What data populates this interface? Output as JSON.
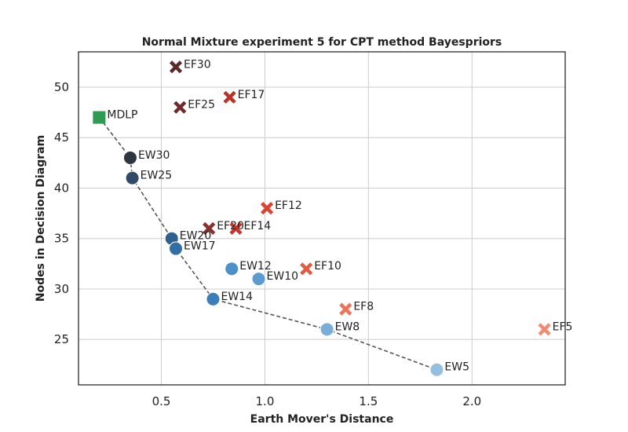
{
  "chart_data": {
    "type": "scatter",
    "title": "Normal Mixture experiment 5 for CPT method Bayespriors",
    "xlabel": "Earth Mover's Distance",
    "ylabel": "Nodes in Decision Diagram",
    "xlim": [
      0.1,
      2.45
    ],
    "ylim": [
      20.5,
      53.5
    ],
    "xticks": [
      0.5,
      1.0,
      1.5,
      2.0
    ],
    "xtick_labels": [
      "0.5",
      "1.0",
      "1.5",
      "2.0"
    ],
    "yticks": [
      25,
      30,
      35,
      40,
      45,
      50
    ],
    "ytick_labels": [
      "25",
      "30",
      "35",
      "40",
      "45",
      "50"
    ],
    "grid": true,
    "series": [
      {
        "marker": "square",
        "color": "#2e9a52",
        "points": [
          {
            "label": "MDLP",
            "x": 0.2,
            "y": 47
          }
        ]
      },
      {
        "marker": "circle",
        "points": [
          {
            "label": "EW30",
            "x": 0.35,
            "y": 43,
            "color": "#2c3540"
          },
          {
            "label": "EW25",
            "x": 0.36,
            "y": 41,
            "color": "#2e4a66"
          },
          {
            "label": "EW20",
            "x": 0.55,
            "y": 35,
            "color": "#2e5f8e"
          },
          {
            "label": "EW17",
            "x": 0.57,
            "y": 34,
            "color": "#306ea3"
          },
          {
            "label": "EW14",
            "x": 0.75,
            "y": 29,
            "color": "#3a7fb8"
          },
          {
            "label": "EW12",
            "x": 0.84,
            "y": 32,
            "color": "#4a90c9"
          },
          {
            "label": "EW10",
            "x": 0.97,
            "y": 31,
            "color": "#5b9bd0"
          },
          {
            "label": "EW8",
            "x": 1.3,
            "y": 26,
            "color": "#78aed8"
          },
          {
            "label": "EW5",
            "x": 1.83,
            "y": 22,
            "color": "#93bfe0"
          }
        ]
      },
      {
        "marker": "x",
        "points": [
          {
            "label": "EF30",
            "x": 0.57,
            "y": 52,
            "color": "#5a2a2a"
          },
          {
            "label": "EF25",
            "x": 0.59,
            "y": 48,
            "color": "#6e2b2b"
          },
          {
            "label": "EF20",
            "x": 0.73,
            "y": 36,
            "color": "#8a2e2e"
          },
          {
            "label": "EF17",
            "x": 0.83,
            "y": 49,
            "color": "#b83226"
          },
          {
            "label": "EF14",
            "x": 0.86,
            "y": 36,
            "color": "#c8352a"
          },
          {
            "label": "EF12",
            "x": 1.01,
            "y": 38,
            "color": "#db4230"
          },
          {
            "label": "EF10",
            "x": 1.2,
            "y": 32,
            "color": "#e45a40"
          },
          {
            "label": "EF8",
            "x": 1.39,
            "y": 28,
            "color": "#ec7559"
          },
          {
            "label": "EF5",
            "x": 2.35,
            "y": 26,
            "color": "#f08a70"
          }
        ]
      }
    ],
    "pareto_line": {
      "style": "dashed",
      "color": "#555555",
      "points": [
        {
          "x": 0.2,
          "y": 47
        },
        {
          "x": 0.35,
          "y": 43
        },
        {
          "x": 0.36,
          "y": 41
        },
        {
          "x": 0.55,
          "y": 35
        },
        {
          "x": 0.57,
          "y": 34
        },
        {
          "x": 0.75,
          "y": 29
        },
        {
          "x": 1.3,
          "y": 26
        },
        {
          "x": 1.83,
          "y": 22
        }
      ]
    }
  }
}
